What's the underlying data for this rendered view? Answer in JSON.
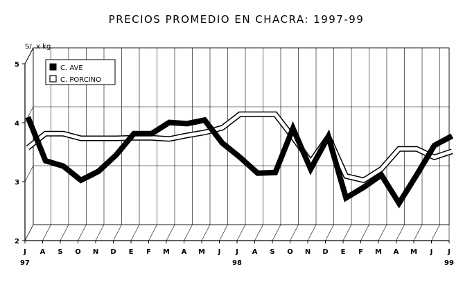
{
  "chart_data": {
    "type": "line",
    "title": "PRECIOS PROMEDIO EN CHACRA: 1997-99",
    "ylabel": "S/. x kg",
    "xlabel": "",
    "ylim": [
      2,
      5
    ],
    "yticks": [
      "2",
      "3",
      "4",
      "5"
    ],
    "categories": [
      "J",
      "A",
      "S",
      "O",
      "N",
      "D",
      "E",
      "F",
      "M",
      "A",
      "M",
      "J",
      "J",
      "A",
      "S",
      "O",
      "N",
      "D",
      "E",
      "F",
      "M",
      "A",
      "M",
      "J",
      "J"
    ],
    "year_labels": [
      {
        "index": 0,
        "label": "97"
      },
      {
        "index": 12,
        "label": "98"
      },
      {
        "index": 24,
        "label": "99"
      }
    ],
    "grid": true,
    "legend_position": "top-left",
    "series": [
      {
        "name": "C. AVE",
        "style": "solid-black",
        "values": [
          4.0,
          3.26,
          3.17,
          2.93,
          3.08,
          3.36,
          3.72,
          3.72,
          3.91,
          3.89,
          3.95,
          3.56,
          3.32,
          3.05,
          3.06,
          3.81,
          3.12,
          3.67,
          2.63,
          2.81,
          3.02,
          2.54,
          3.02,
          3.52,
          3.68
        ]
      },
      {
        "name": "C. PORCINO",
        "style": "hollow-outline",
        "values": [
          3.48,
          3.72,
          3.72,
          3.64,
          3.64,
          3.64,
          3.65,
          3.65,
          3.63,
          3.69,
          3.74,
          3.82,
          4.05,
          4.05,
          4.05,
          3.66,
          3.24,
          3.67,
          3.0,
          2.93,
          3.12,
          3.46,
          3.46,
          3.32,
          3.42
        ]
      }
    ],
    "colors": {
      "axis": "#000000",
      "grid": "#000000",
      "ave": "#000000",
      "porcino_outline": "#000000",
      "porcino_fill": "#ffffff"
    }
  }
}
